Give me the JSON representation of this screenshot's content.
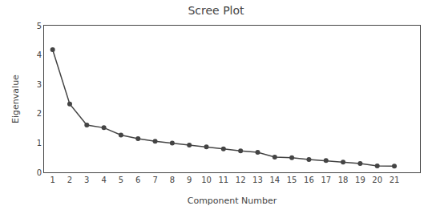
{
  "chart_data": {
    "type": "line",
    "title": "Scree Plot",
    "xlabel": "Component Number",
    "ylabel": "Eigenvalue",
    "x": [
      1,
      2,
      3,
      4,
      5,
      6,
      7,
      8,
      9,
      10,
      11,
      12,
      13,
      14,
      15,
      16,
      17,
      18,
      19,
      20,
      21
    ],
    "values": [
      4.18,
      2.33,
      1.61,
      1.52,
      1.27,
      1.15,
      1.06,
      1.0,
      0.93,
      0.87,
      0.8,
      0.73,
      0.68,
      0.52,
      0.5,
      0.44,
      0.4,
      0.35,
      0.3,
      0.22,
      0.21
    ],
    "xlim": [
      0.5,
      22.5
    ],
    "ylim": [
      0,
      5
    ],
    "xticks": [
      1,
      2,
      3,
      4,
      5,
      6,
      7,
      8,
      9,
      10,
      11,
      12,
      13,
      14,
      15,
      16,
      17,
      18,
      19,
      20,
      21
    ],
    "yticks": [
      0,
      1,
      2,
      3,
      4,
      5
    ],
    "color": "#444444",
    "marker": "circle",
    "grid": false
  }
}
